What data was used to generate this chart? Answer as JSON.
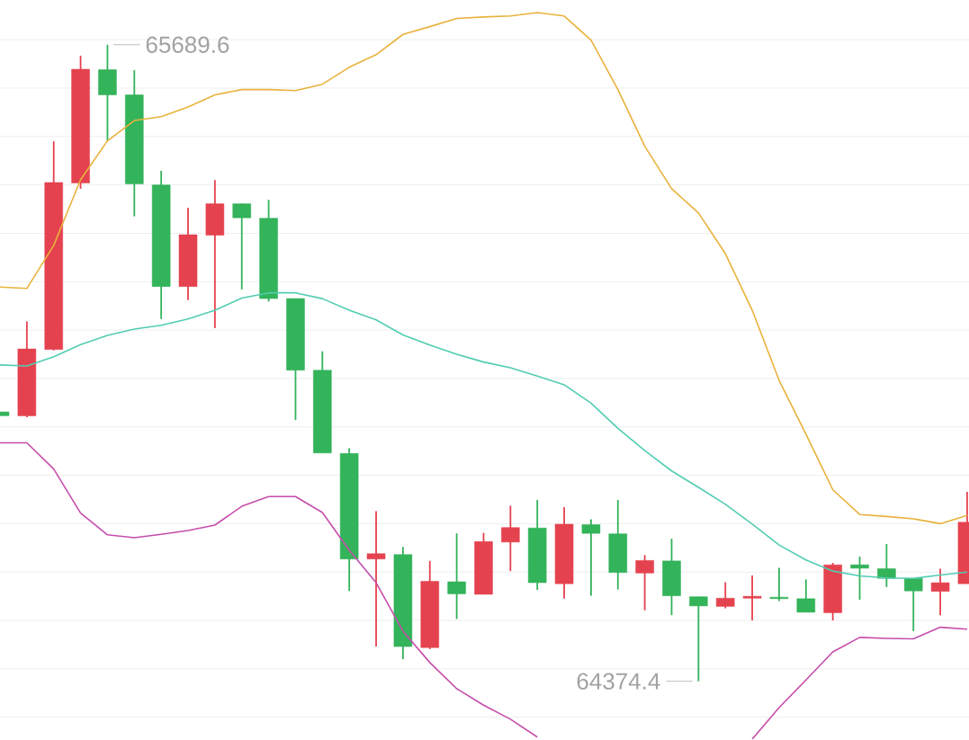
{
  "chart_data": {
    "type": "candlestick",
    "categories": [
      null,
      null,
      null,
      null,
      null,
      null,
      null,
      null,
      null,
      null,
      null,
      null,
      null,
      null,
      null,
      null,
      null,
      null,
      null,
      null,
      null,
      null,
      null,
      null,
      null,
      null,
      null,
      null,
      null,
      null,
      null,
      null,
      null,
      null,
      null,
      null,
      null
    ],
    "ohlc": [
      [
        64931,
        64931,
        64923,
        64923
      ],
      [
        64923,
        65118,
        64920,
        65061
      ],
      [
        65060,
        65490,
        65058,
        65405
      ],
      [
        65404,
        65667,
        65392,
        65639
      ],
      [
        65638,
        65689.6,
        65491,
        65586
      ],
      [
        65586,
        65637,
        65335,
        65402
      ],
      [
        65400,
        65429,
        65123,
        65190
      ],
      [
        65190,
        65353,
        65162,
        65297
      ],
      [
        65296,
        65410,
        65104,
        65361
      ],
      [
        65361,
        65361,
        65184,
        65332
      ],
      [
        65331,
        65369,
        65159,
        65165
      ],
      [
        65165,
        65165,
        64914,
        65017
      ],
      [
        65017,
        65056,
        64846,
        64846
      ],
      [
        64845,
        64856,
        64561,
        64627
      ],
      [
        64627,
        64726,
        64446,
        64638
      ],
      [
        64636,
        64652,
        64420,
        64446
      ],
      [
        64444,
        64623,
        64441,
        64581
      ],
      [
        64580,
        64680,
        64503,
        64555
      ],
      [
        64554,
        64681,
        64554,
        64663
      ],
      [
        64662,
        64737,
        64602,
        64692
      ],
      [
        64691,
        64749,
        64563,
        64578
      ],
      [
        64576,
        64734,
        64545,
        64699
      ],
      [
        64698,
        64709,
        64551,
        64680
      ],
      [
        64679,
        64749,
        64564,
        64599
      ],
      [
        64598,
        64635,
        64521,
        64624
      ],
      [
        64623,
        64669,
        64511,
        64551
      ],
      [
        64549,
        64549,
        64374.4,
        64530
      ],
      [
        64529,
        64579,
        64525,
        64546
      ],
      [
        64546,
        64593,
        64500,
        64550
      ],
      [
        64548,
        64609,
        64540,
        64545
      ],
      [
        64545,
        64585,
        64517,
        64517
      ],
      [
        64516,
        64619,
        64500,
        64615
      ],
      [
        64615,
        64632,
        64543,
        64608
      ],
      [
        64607,
        64658,
        64569,
        64587
      ],
      [
        64587,
        64587,
        64478,
        64561
      ],
      [
        64560,
        64607,
        64511,
        64578
      ],
      [
        64576,
        64766,
        64576,
        64703
      ]
    ],
    "colors": [
      "#33b35a",
      "#e5424f",
      "#e5424f",
      "#e5424f",
      "#33b35a",
      "#33b35a",
      "#33b35a",
      "#e5424f",
      "#e5424f",
      "#33b35a",
      "#33b35a",
      "#33b35a",
      "#33b35a",
      "#33b35a",
      "#e5424f",
      "#33b35a",
      "#e5424f",
      "#33b35a",
      "#e5424f",
      "#e5424f",
      "#33b35a",
      "#e5424f",
      "#33b35a",
      "#33b35a",
      "#e5424f",
      "#33b35a",
      "#33b35a",
      "#e5424f",
      "#e5424f",
      "#33b35a",
      "#33b35a",
      "#e5424f",
      "#33b35a",
      "#33b35a",
      "#33b35a",
      "#e5424f",
      "#e5424f"
    ],
    "series": [
      {
        "type": "line",
        "color": "#e9b23c",
        "values": [
          65189,
          65186,
          65275,
          65411,
          65491,
          65533,
          65541,
          65561,
          65586,
          65597,
          65597,
          65595,
          65608,
          65643,
          65669,
          65711,
          65727,
          65744,
          65747,
          65749,
          65756,
          65749,
          65699,
          65597,
          65480,
          65392,
          65342,
          65258,
          65141,
          64996,
          64885,
          64770,
          64719,
          64715,
          64710,
          64700,
          64717
        ]
      },
      {
        "type": "line",
        "color": "#52cdb2",
        "values": [
          65028,
          65026,
          65045,
          65070,
          65089,
          65102,
          65110,
          65123,
          65141,
          65166,
          65177,
          65177,
          65165,
          65141,
          65121,
          65090,
          65069,
          65050,
          65034,
          65022,
          65005,
          64987,
          64949,
          64897,
          64851,
          64809,
          64775,
          64740,
          64699,
          64656,
          64625,
          64602,
          64592,
          64588,
          64587,
          64594,
          64600
        ]
      },
      {
        "type": "line",
        "color": "#c64dab",
        "values": [
          64867,
          64867,
          64813,
          64722,
          64677,
          64671,
          64678,
          64686,
          64697,
          64736,
          64756,
          64756,
          64723,
          64645,
          64578,
          64478,
          64413,
          64359,
          64325,
          64296,
          64259,
          null,
          null,
          null,
          null,
          null,
          null,
          null,
          64255,
          64320,
          64377,
          64435,
          64465,
          64463,
          64462,
          64486,
          64482
        ]
      }
    ],
    "yticks": [
      64300,
      64400,
      64500,
      64600,
      64700,
      64800,
      64900,
      65000,
      65100,
      65200,
      65300,
      65400,
      65500,
      65600,
      65700
    ],
    "grid": "y",
    "tick_labels": false,
    "annotations": [
      "65689.6",
      "64374.4"
    ]
  }
}
